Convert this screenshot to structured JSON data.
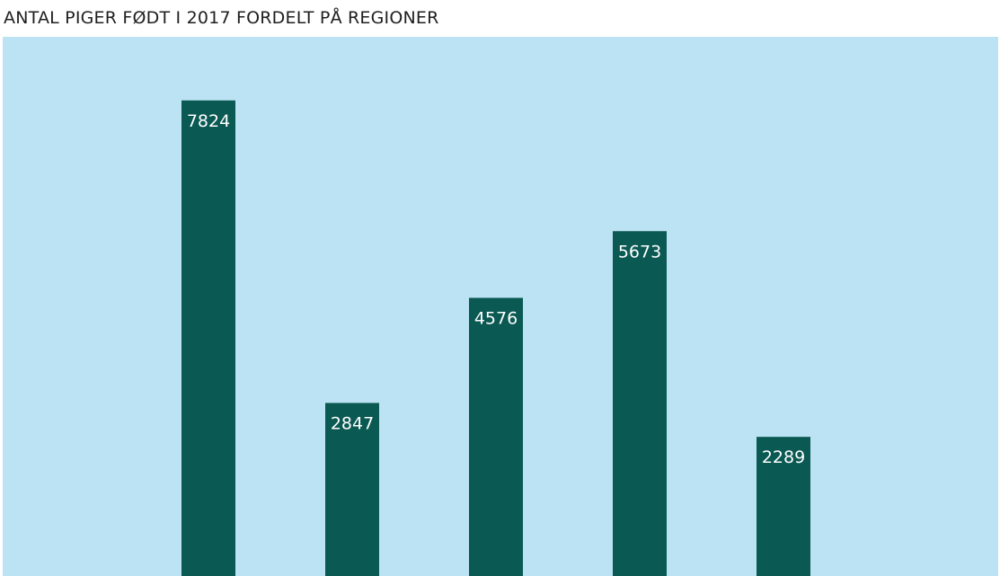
{
  "chart_data": {
    "type": "bar",
    "title": "ANTAL PIGER FØDT I 2017 FORDELT PÅ REGIONER",
    "categories": [
      "",
      "",
      "",
      "",
      ""
    ],
    "values": [
      7824,
      2847,
      4576,
      5673,
      2289
    ],
    "data_labels": [
      "7824",
      "2847",
      "4576",
      "5673",
      "2289"
    ],
    "ylim": [
      0,
      8870
    ],
    "grid": false,
    "legend": "none",
    "colors": {
      "bar": "#0a5953",
      "plot_background": "#bce3f3",
      "label_text": "#ffffff",
      "title_text": "#1f1f1f"
    }
  }
}
